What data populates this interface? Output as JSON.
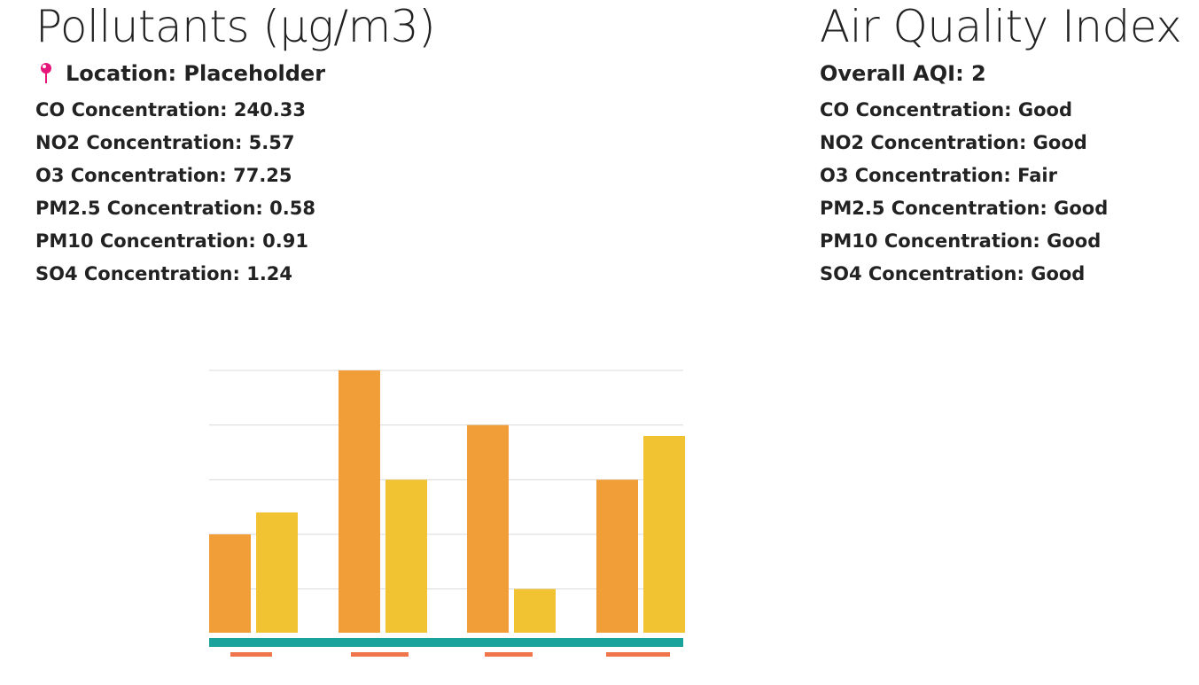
{
  "pollutants": {
    "title": "Pollutants (µg/m3)",
    "location_label": "Location: Placeholder",
    "rows": [
      "CO Concentration: 240.33",
      "NO2 Concentration: 5.57",
      "O3 Concentration: 77.25",
      "PM2.5 Concentration: 0.58",
      "PM10 Concentration: 0.91",
      "SO4 Concentration: 1.24"
    ]
  },
  "aqi": {
    "title": "Air Quality Index",
    "overall": "Overall AQI: 2",
    "rows": [
      "CO Concentration: Good",
      "NO2 Concentration: Good",
      "O3 Concentration: Fair",
      "PM2.5 Concentration: Good",
      "PM10 Concentration: Good",
      "SO4 Concentration: Good"
    ]
  },
  "icons": {
    "location": "pushpin-icon"
  },
  "colors": {
    "pin": "#e5157a",
    "series_1": "#f29e38",
    "series_2": "#f1c232",
    "baseline": "#1aa39a",
    "category_marker": "#f0754a",
    "gridline": "#d9d9d9"
  },
  "chart_data": {
    "type": "bar",
    "categories": [
      "",
      "",
      "",
      ""
    ],
    "series": [
      {
        "values": [
          4.5,
          12,
          9.5,
          7
        ]
      },
      {
        "values": [
          5.5,
          7,
          2,
          9
        ]
      }
    ],
    "ylim": [
      0,
      12
    ],
    "gridlines": [
      2,
      4.5,
      7,
      9.5,
      12
    ],
    "grid": true,
    "legend": "none",
    "xlabel": "",
    "ylabel": ""
  }
}
